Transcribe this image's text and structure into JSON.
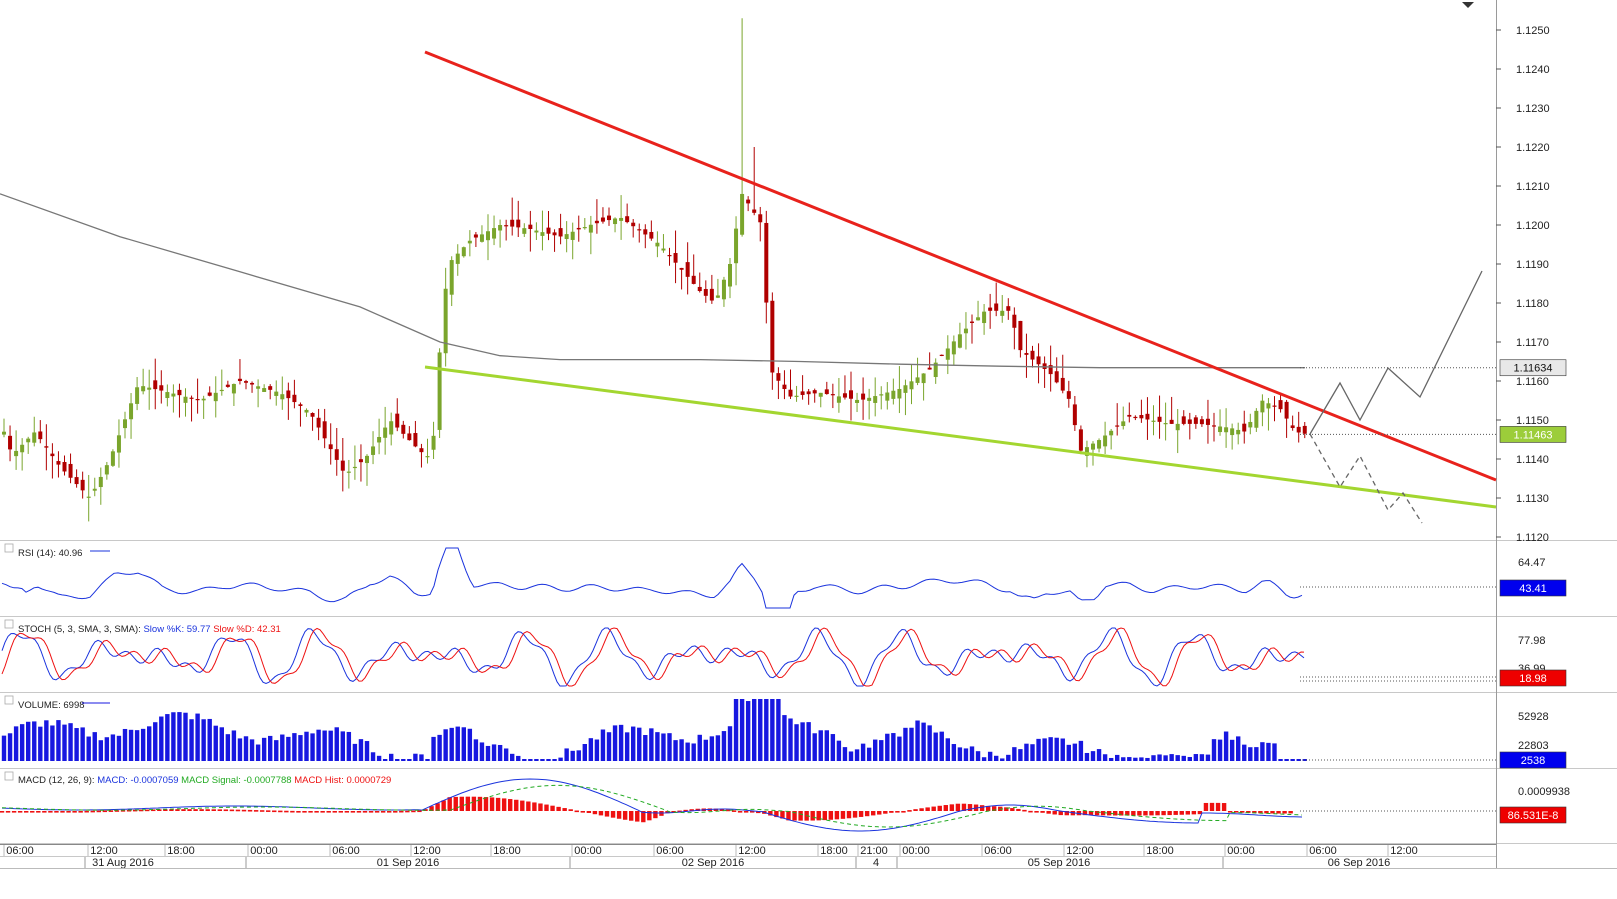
{
  "colors": {
    "up": "#7aa52c",
    "down": "#b00000",
    "resistance": "#e8221c",
    "support": "#a3d630",
    "ma": "#777777",
    "rsi": "#1a33dd",
    "stoch_k": "#1a33dd",
    "stoch_d": "#ee1111",
    "volume": "#1717e0",
    "macd_line": "#1a33dd",
    "macd_signal": "#22aa22",
    "macd_hist": "#ee1111",
    "badge_blue": "#0000ee",
    "badge_red": "#ee0000",
    "badge_green": "#9ccd3a"
  },
  "panels": {
    "price": {
      "badge_ma": "1.11634",
      "badge_last": "1.11463"
    },
    "rsi": {
      "label": "RSI (14): 40.96",
      "badge": "43.41",
      "ticks": [
        "64.47"
      ]
    },
    "stoch": {
      "label_prefix": "STOCH (5, 3, SMA, 3, SMA):",
      "label_k": "Slow %K: 59.77",
      "label_d": "Slow %D: 42.31",
      "badge": "18.98",
      "ticks": [
        "77.98",
        "36.99"
      ]
    },
    "volume": {
      "label": "VOLUME: 6998",
      "badge": "2538",
      "ticks": [
        "52928",
        "22803"
      ]
    },
    "macd": {
      "label_prefix": "MACD (12, 26, 9):",
      "label_macd": "MACD: -0.0007059",
      "label_signal": "MACD Signal: -0.0007788",
      "label_hist": "MACD Hist: 0.0000729",
      "badge": "86.531E-8",
      "ticks": [
        "0.0009938"
      ]
    }
  },
  "time_axis": {
    "times": [
      "06:00",
      "12:00",
      "18:00",
      "00:00",
      "06:00",
      "12:00",
      "18:00",
      "00:00",
      "06:00",
      "12:00",
      "18:00",
      "21:00",
      "00:00",
      "06:00",
      "12:00",
      "18:00",
      "00:00",
      "06:00",
      "12:00"
    ],
    "dates": [
      "31 Aug 2016",
      "01 Sep 2016",
      "02 Sep 2016",
      "4",
      "05 Sep 2016",
      "06 Sep 2016"
    ]
  },
  "chart_data": {
    "type": "candlestick",
    "instrument_hint": "EUR/USD hourly",
    "ylim": [
      1.112,
      1.1253
    ],
    "y_ticks": [
      "1.1250",
      "1.1240",
      "1.1230",
      "1.1220",
      "1.1210",
      "1.1200",
      "1.1190",
      "1.1180",
      "1.1170",
      "1.1160",
      "1.1150",
      "1.1140",
      "1.1130",
      "1.1120"
    ],
    "annotations": [
      "descending resistance line",
      "ascending support line",
      "projected bullish path",
      "projected bearish path"
    ],
    "ma_level": 1.11634,
    "last_price": 1.11463
  }
}
